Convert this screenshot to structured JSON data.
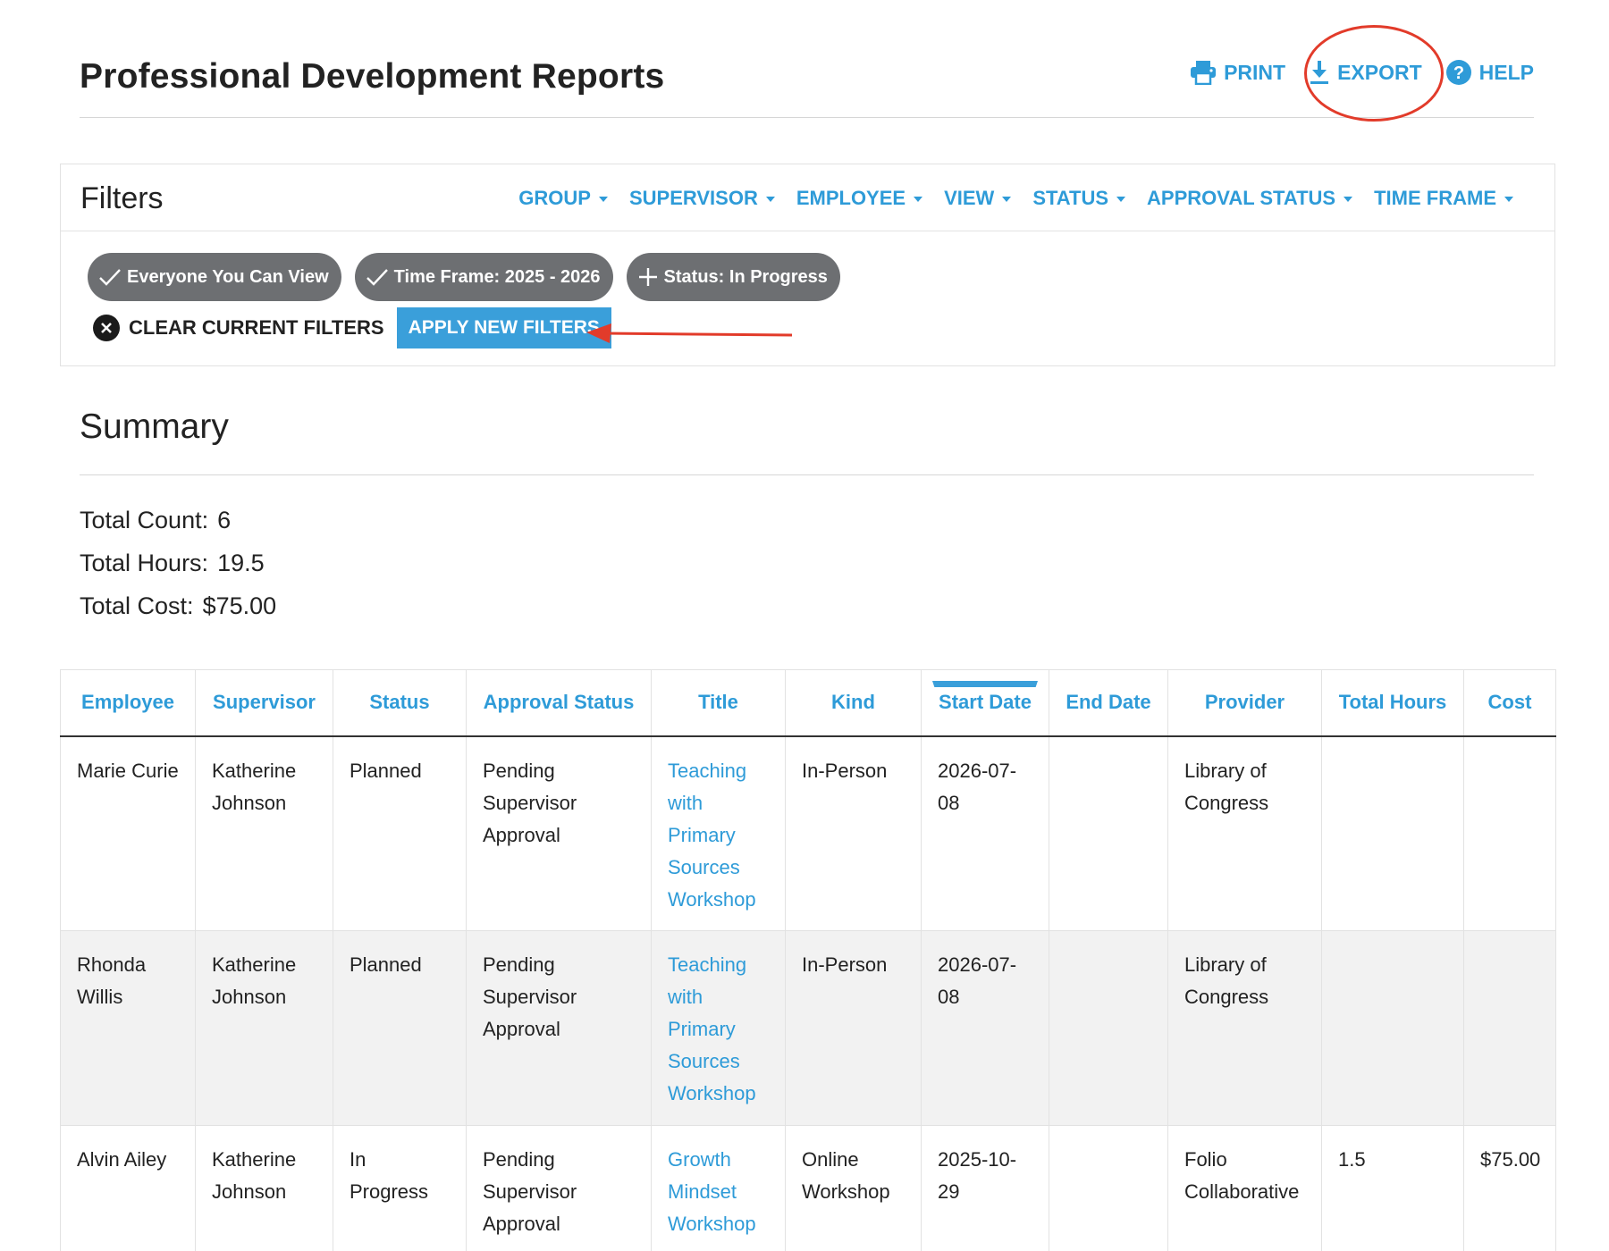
{
  "header": {
    "title": "Professional Development Reports",
    "actions": [
      {
        "label": "PRINT",
        "icon": "printer-icon"
      },
      {
        "label": "EXPORT",
        "icon": "download-icon"
      },
      {
        "label": "HELP",
        "icon": "help-circle-icon"
      }
    ]
  },
  "filters": {
    "title": "Filters",
    "menus": [
      "GROUP",
      "SUPERVISOR",
      "EMPLOYEE",
      "VIEW",
      "STATUS",
      "APPROVAL STATUS",
      "TIME FRAME"
    ],
    "chips": [
      {
        "label": "Everyone You Can View",
        "icon": "check-icon"
      },
      {
        "label": "Time Frame: 2025 - 2026",
        "icon": "check-icon"
      },
      {
        "label": "Status: In Progress",
        "icon": "plus-icon"
      }
    ],
    "clear_label": "CLEAR CURRENT FILTERS",
    "apply_label": "APPLY NEW FILTERS"
  },
  "summary": {
    "title": "Summary",
    "stats": [
      {
        "label": "Total Count:",
        "value": "6"
      },
      {
        "label": "Total Hours:",
        "value": "19.5"
      },
      {
        "label": "Total Cost:",
        "value": "$75.00"
      }
    ]
  },
  "table": {
    "columns": [
      "Employee",
      "Supervisor",
      "Status",
      "Approval Status",
      "Title",
      "Kind",
      "Start Date",
      "End Date",
      "Provider",
      "Total Hours",
      "Cost"
    ],
    "sorted_column": "Start Date",
    "rows": [
      {
        "employee": "Marie Curie",
        "supervisor": "Katherine Johnson",
        "status": "Planned",
        "approval_status": "Pending Supervisor Approval",
        "title": "Teaching with Primary Sources Workshop",
        "kind": "In-Person",
        "start_date": "2026-07-08",
        "end_date": "",
        "provider": "Library of Congress",
        "total_hours": "",
        "cost": ""
      },
      {
        "employee": "Rhonda Willis",
        "supervisor": "Katherine Johnson",
        "status": "Planned",
        "approval_status": "Pending Supervisor Approval",
        "title": "Teaching with Primary Sources Workshop",
        "kind": "In-Person",
        "start_date": "2026-07-08",
        "end_date": "",
        "provider": "Library of Congress",
        "total_hours": "",
        "cost": ""
      },
      {
        "employee": "Alvin Ailey",
        "supervisor": "Katherine Johnson",
        "status": "In Progress",
        "approval_status": "Pending Supervisor Approval",
        "title": "Growth Mindset Workshop",
        "kind": "Online Workshop",
        "start_date": "2025-10-29",
        "end_date": "",
        "provider": "Folio Collaborative",
        "total_hours": "1.5",
        "cost": "$75.00"
      }
    ]
  },
  "colors": {
    "accent": "#2e9bd8",
    "button": "#3a9fda",
    "chip": "#6d6f72",
    "annotation": "#e23b2a"
  }
}
